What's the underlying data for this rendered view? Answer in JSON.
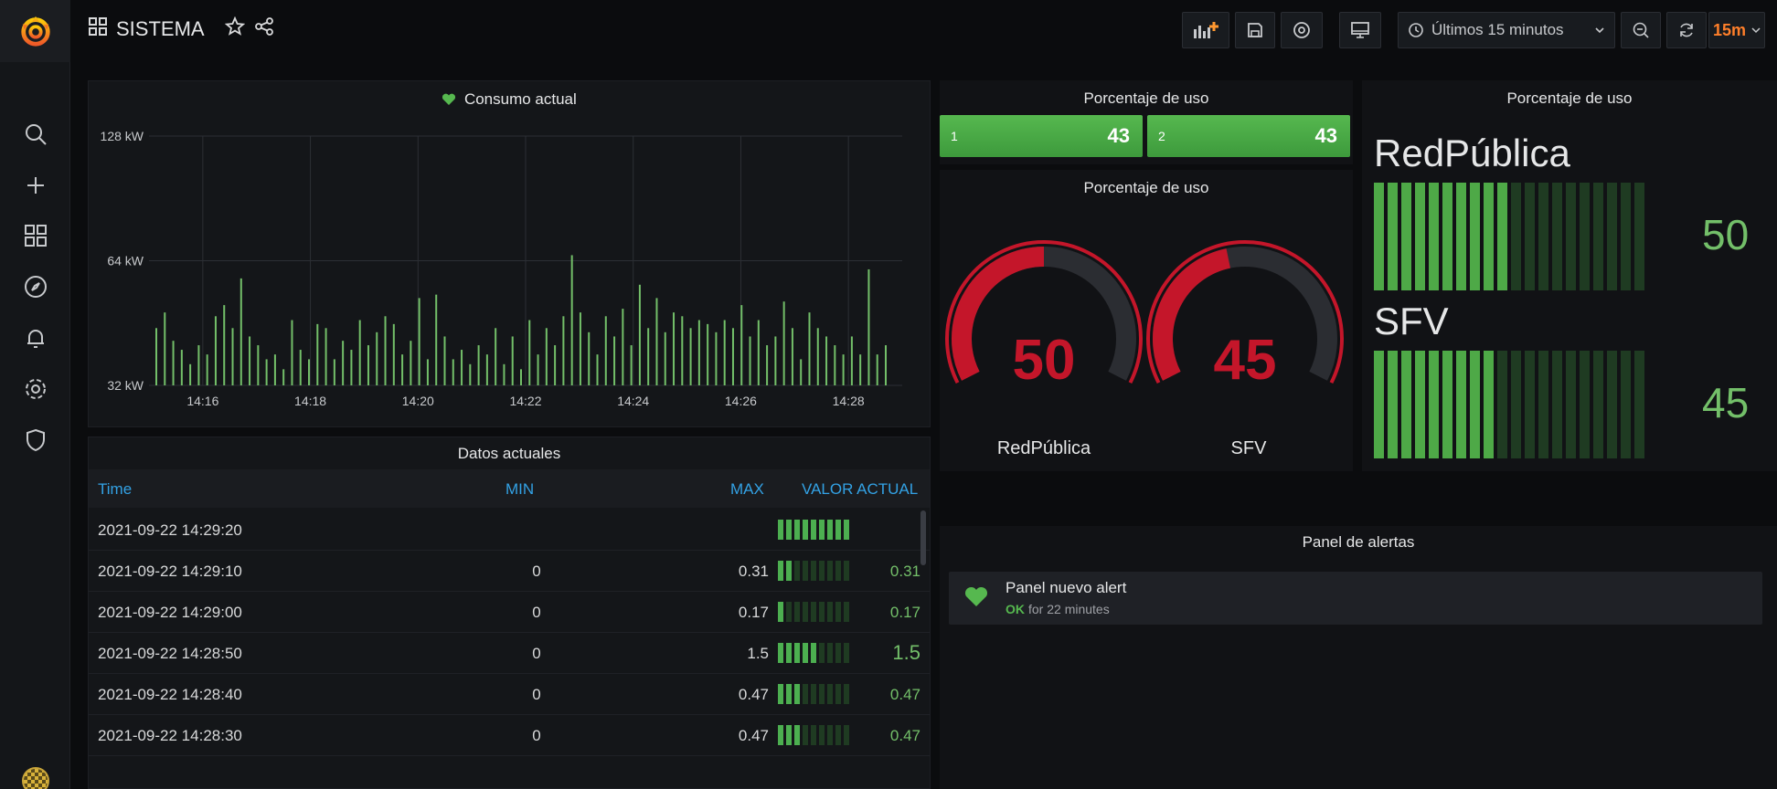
{
  "topbar": {
    "title": "SISTEMA",
    "time_range": "Últimos 15 minutos",
    "refresh_interval": "15m"
  },
  "graph_panel": {
    "title": "Consumo actual",
    "y_ticks": [
      "128 kW",
      "64 kW",
      "32 kW"
    ],
    "x_ticks": [
      "14:16",
      "14:18",
      "14:20",
      "14:22",
      "14:24",
      "14:26",
      "14:28"
    ]
  },
  "table_panel": {
    "title": "Datos actuales",
    "columns": [
      "Time",
      "MIN",
      "MAX",
      "VALOR ACTUAL"
    ],
    "rows": [
      {
        "time": "2021-09-22 14:29:20",
        "min": "",
        "max": "",
        "value": "",
        "level": 1.0
      },
      {
        "time": "2021-09-22 14:29:10",
        "min": "0",
        "max": "0.31",
        "value": "0.31",
        "level": 0.2
      },
      {
        "time": "2021-09-22 14:29:00",
        "min": "0",
        "max": "0.17",
        "value": "0.17",
        "level": 0.11
      },
      {
        "time": "2021-09-22 14:28:50",
        "min": "0",
        "max": "1.5",
        "value": "1.5",
        "level": 0.6
      },
      {
        "time": "2021-09-22 14:28:40",
        "min": "0",
        "max": "0.47",
        "value": "0.47",
        "level": 0.28
      },
      {
        "time": "2021-09-22 14:28:30",
        "min": "0",
        "max": "0.47",
        "value": "0.47",
        "level": 0.28
      }
    ]
  },
  "stat_panel": {
    "title": "Porcentaje de uso",
    "items": [
      {
        "label": "1",
        "value": "43"
      },
      {
        "label": "2",
        "value": "43"
      }
    ]
  },
  "gauge_panel": {
    "title": "Porcentaje de uso",
    "gauges": [
      {
        "label": "RedPública",
        "value": "50",
        "fraction": 0.5
      },
      {
        "label": "SFV",
        "value": "45",
        "fraction": 0.45
      }
    ]
  },
  "bargauge_panel": {
    "title": "Porcentaje de uso",
    "items": [
      {
        "label": "RedPública",
        "value": "50",
        "fraction": 0.5
      },
      {
        "label": "SFV",
        "value": "45",
        "fraction": 0.45
      }
    ]
  },
  "alert_panel": {
    "title": "Panel de alertas",
    "alert_name": "Panel nuevo alert",
    "alert_state": "OK",
    "alert_duration": "for 22 minutes"
  },
  "colors": {
    "accent_green": "#73bf69",
    "gauge_red": "#c4162a",
    "link_blue": "#33a2e5",
    "refresh_orange": "#ff7f2a"
  },
  "chart_data": {
    "type": "bar",
    "x_range": [
      "14:15",
      "14:29"
    ],
    "ylim": [
      32,
      128
    ],
    "y_scale": "log2",
    "grid": true,
    "values": [
      44,
      48,
      41,
      39,
      36,
      40,
      38,
      47,
      50,
      44,
      58,
      42,
      40,
      37,
      38,
      35,
      46,
      39,
      37,
      45,
      44,
      37,
      41,
      39,
      46,
      40,
      43,
      47,
      45,
      38,
      41,
      52,
      37,
      53,
      42,
      37,
      39,
      36,
      40,
      38,
      44,
      36,
      42,
      35,
      46,
      38,
      44,
      40,
      47,
      66,
      48,
      43,
      38,
      47,
      42,
      49,
      40,
      56,
      44,
      52,
      43,
      48,
      47,
      44,
      46,
      45,
      43,
      46,
      44,
      50,
      42,
      46,
      40,
      42,
      51,
      44,
      37,
      48,
      44,
      42,
      40,
      38,
      42,
      38,
      61,
      38,
      40
    ]
  }
}
